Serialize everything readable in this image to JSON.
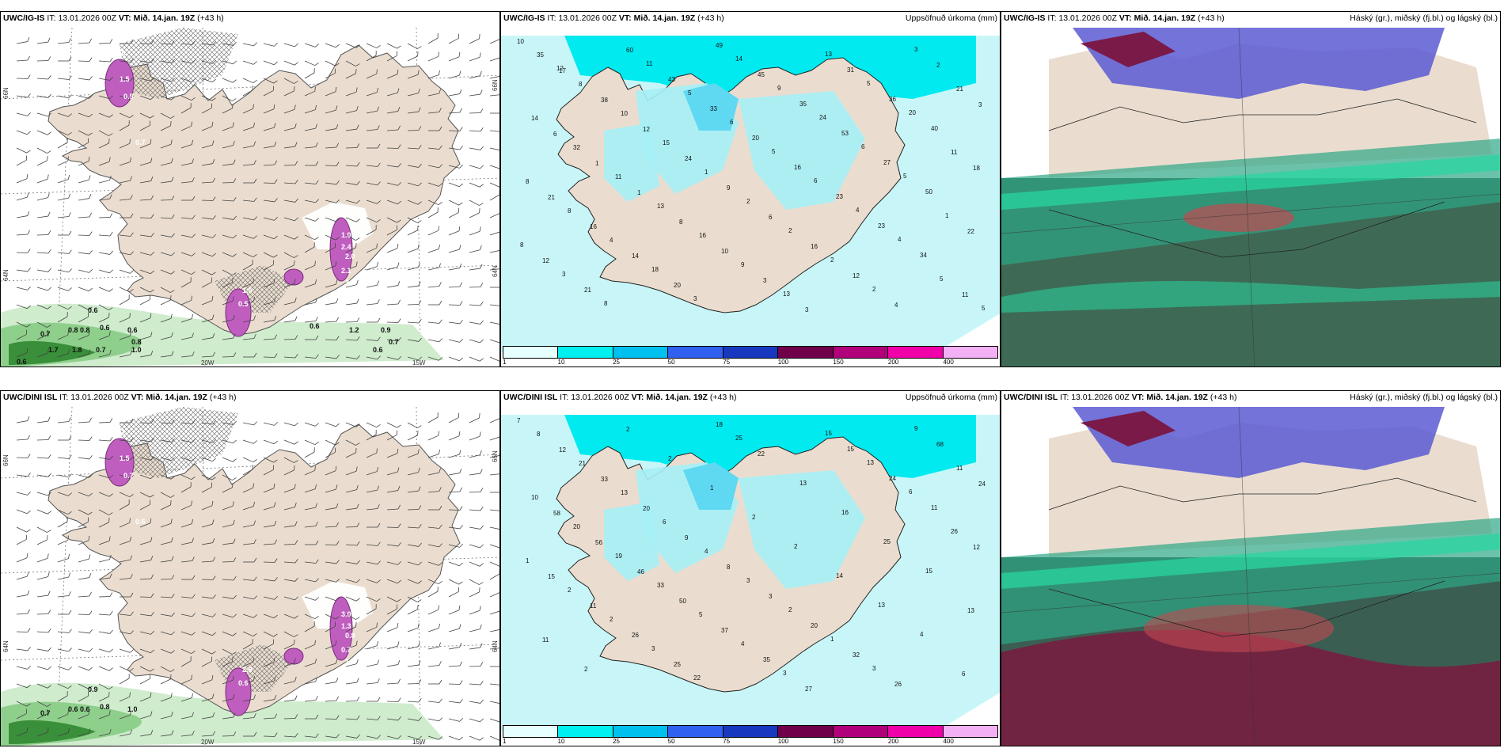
{
  "rows": [
    {
      "panels": [
        {
          "model": "UWC/IG-IS",
          "it_label": "IT:",
          "it_value": "13.01.2026 00Z",
          "vt_label": "VT:",
          "vt_value": "Mið. 14.jan. 19Z",
          "lead": "(+43 h)",
          "right_title": ""
        },
        {
          "model": "UWC/IG-IS",
          "it_label": "IT:",
          "it_value": "13.01.2026 00Z",
          "vt_label": "VT:",
          "vt_value": "Mið. 14.jan. 19Z",
          "lead": "(+43 h)",
          "right_title": "Uppsöfnuð úrkoma (mm)"
        },
        {
          "model": "UWC/IG-IS",
          "it_label": "IT:",
          "it_value": "13.01.2026 00Z",
          "vt_label": "VT:",
          "vt_value": "Mið. 14.jan. 19Z",
          "lead": "(+43 h)",
          "right_title": "Háský (gr.), miðský (fj.bl.) og lágský (bl.)"
        }
      ]
    },
    {
      "panels": [
        {
          "model": "UWC/DINI ISL",
          "it_label": "IT:",
          "it_value": "13.01.2026 00Z",
          "vt_label": "VT:",
          "vt_value": "Mið. 14.jan. 19Z",
          "lead": "(+43 h)",
          "right_title": ""
        },
        {
          "model": "UWC/DINI ISL",
          "it_label": "IT:",
          "it_value": "13.01.2026 00Z",
          "vt_label": "VT:",
          "vt_value": "Mið. 14.jan. 19Z",
          "lead": "(+43 h)",
          "right_title": "Uppsöfnuð úrkoma (mm)"
        },
        {
          "model": "UWC/DINI ISL",
          "it_label": "IT:",
          "it_value": "13.01.2026 00Z",
          "vt_label": "VT:",
          "vt_value": "Mið. 14.jan. 19Z",
          "lead": "(+43 h)",
          "right_title": "Háský (gr.), miðský (fj.bl.) og lágský (bl.)"
        }
      ]
    }
  ],
  "grid_labels": {
    "lat_66": "66N",
    "lat_64": "64N",
    "lon_20": "20W",
    "lon_15": "15W"
  },
  "colorbar": {
    "ticks": [
      "1",
      "10",
      "25",
      "50",
      "75",
      "100",
      "150",
      "200",
      "400"
    ],
    "colors": [
      "#e6ffff",
      "#00f0f0",
      "#00c0f0",
      "#3060f0",
      "#1838c0",
      "#70004a",
      "#b0007a",
      "#f000a8",
      "#f4b0f4"
    ]
  },
  "precip_values_top": [
    "10",
    "17",
    "38",
    "12",
    "24",
    "9",
    "6",
    "16",
    "12",
    "4",
    "2",
    "3",
    "6",
    "1",
    "1",
    "8",
    "10",
    "3",
    "3",
    "31",
    "36",
    "40",
    "18",
    "21",
    "16",
    "14",
    "20",
    "49",
    "45",
    "35",
    "53",
    "27",
    "50",
    "22",
    "12",
    "21",
    "60",
    "43",
    "33",
    "20",
    "16",
    "23",
    "23",
    "34",
    "11",
    "35",
    "8",
    "10",
    "15",
    "1",
    "2",
    "2",
    "2",
    "2",
    "3",
    "21",
    "14",
    "32",
    "11",
    "13",
    "16",
    "9",
    "13",
    "13",
    "5",
    "20",
    "11",
    "8",
    "8",
    "4",
    "18",
    "3",
    "14",
    "9",
    "24",
    "6",
    "5",
    "1",
    "8",
    "3",
    "8",
    "11",
    "5",
    "6",
    "5",
    "6",
    "4",
    "4",
    "5",
    "5",
    "12"
  ],
  "precip_values_bottom": [
    "7",
    "12",
    "33",
    "20",
    "9",
    "8",
    "3",
    "20",
    "32",
    "26",
    "68",
    "24",
    "58",
    "56",
    "46",
    "50",
    "37",
    "35",
    "27",
    "15",
    "24",
    "11",
    "12",
    "15",
    "11",
    "26",
    "25",
    "18",
    "22",
    "13",
    "16",
    "25",
    "15",
    "13",
    "11",
    "2",
    "2",
    "2",
    "1",
    "2",
    "2",
    "14",
    "13",
    "4",
    "6",
    "8",
    "21",
    "13",
    "6",
    "4",
    "3",
    "2",
    "1",
    "3",
    "9",
    "11",
    "10",
    "20",
    "19",
    "33",
    "5",
    "4",
    "3",
    "15",
    "13",
    "6",
    "26",
    "1",
    "2",
    "2",
    "3",
    "22",
    "25"
  ],
  "wind_labels_top": [
    "1.0",
    "1.5",
    "0.5",
    "0.7",
    "1.0",
    "2.4",
    "2.0",
    "1.5",
    "0.5",
    "2.1",
    "3.2",
    "0.6",
    "0.7",
    "0.8",
    "0.8",
    "0.6",
    "0.6",
    "0.8",
    "1.0",
    "1.7",
    "1.8",
    "0.7",
    "0.6",
    "1.2",
    "0.9",
    "0.7",
    "0.6",
    "0.6"
  ],
  "wind_labels_bottom": [
    "3.2",
    "1.5",
    "0.7",
    "0.6",
    "3.0",
    "1.3",
    "0.8",
    "2.8",
    "0.6",
    "0.7",
    "1.0",
    "0.9",
    "0.7",
    "0.6",
    "0.6",
    "0.8",
    "1.0"
  ]
}
